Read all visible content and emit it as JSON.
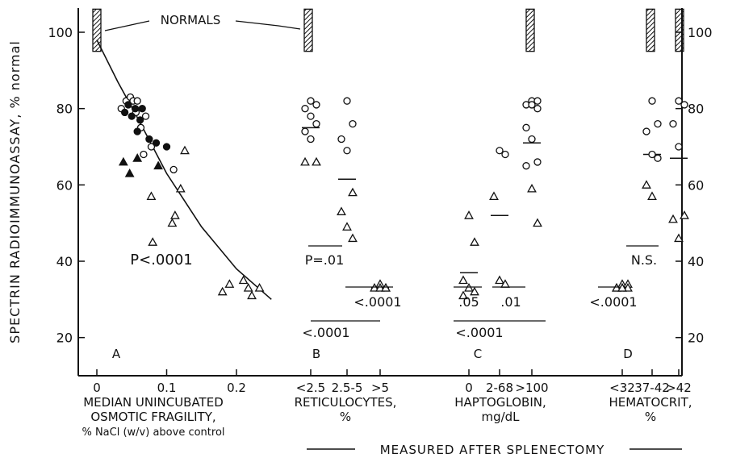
{
  "chart_data": {
    "type": "scatter",
    "ylabel": "SPECTRIN RADIOIMMUNOASSAY, % normal",
    "ylim": [
      10,
      105
    ],
    "yticks": [
      20,
      40,
      60,
      80,
      100
    ],
    "right_axis_labels": true,
    "footer": "MEASURED AFTER SPLENECTOMY",
    "markers": {
      "open_circle": "○",
      "filled_circle": "●",
      "open_triangle": "△",
      "filled_triangle": "▲"
    },
    "panels": [
      {
        "id": "A",
        "type": "scatter",
        "xlabel_lines": [
          "MEDIAN UNINCUBATED",
          "OSMOTIC FRAGILITY,",
          "% NaCl (w/v) above control"
        ],
        "xticks": [
          "0",
          "0.1",
          "0.2"
        ],
        "xlim": [
          -0.02,
          0.27
        ],
        "annotations": [
          "NORMALS",
          "P<.0001"
        ],
        "normals_range": [
          95,
          105
        ],
        "fit_curve": [
          [
            0.0,
            98
          ],
          [
            0.03,
            87
          ],
          [
            0.06,
            77
          ],
          [
            0.1,
            63
          ],
          [
            0.15,
            49
          ],
          [
            0.2,
            38
          ],
          [
            0.25,
            30
          ]
        ],
        "series": [
          {
            "marker": "open_circle",
            "points": [
              [
                0.035,
                80
              ],
              [
                0.042,
                82
              ],
              [
                0.048,
                83
              ],
              [
                0.052,
                82
              ],
              [
                0.056,
                79
              ],
              [
                0.058,
                82
              ],
              [
                0.063,
                75
              ],
              [
                0.067,
                68
              ],
              [
                0.07,
                78
              ],
              [
                0.078,
                70
              ],
              [
                0.11,
                64
              ]
            ]
          },
          {
            "marker": "filled_circle",
            "points": [
              [
                0.04,
                79
              ],
              [
                0.045,
                81
              ],
              [
                0.05,
                78
              ],
              [
                0.055,
                80
              ],
              [
                0.058,
                74
              ],
              [
                0.062,
                77
              ],
              [
                0.065,
                80
              ],
              [
                0.075,
                72
              ],
              [
                0.085,
                71
              ],
              [
                0.1,
                70
              ]
            ]
          },
          {
            "marker": "filled_triangle",
            "points": [
              [
                0.038,
                66
              ],
              [
                0.047,
                63
              ],
              [
                0.058,
                67
              ],
              [
                0.088,
                65
              ]
            ]
          },
          {
            "marker": "open_triangle",
            "points": [
              [
                0.078,
                57
              ],
              [
                0.08,
                45
              ],
              [
                0.108,
                50
              ],
              [
                0.112,
                52
              ],
              [
                0.12,
                59
              ],
              [
                0.126,
                69
              ],
              [
                0.18,
                32
              ],
              [
                0.19,
                34
              ],
              [
                0.21,
                35
              ],
              [
                0.217,
                33
              ],
              [
                0.222,
                31
              ],
              [
                0.233,
                33
              ]
            ]
          }
        ]
      },
      {
        "id": "B",
        "type": "scatter",
        "xlabel_lines": [
          "RETICULOCYTES,",
          "%"
        ],
        "categories": [
          "<2.5",
          "2.5-5",
          ">5"
        ],
        "normals_range": [
          95,
          105
        ],
        "annotations": [
          "P=.01",
          "<.0001",
          "<.0001"
        ],
        "medians": [
          75,
          61.5,
          33
        ],
        "series": [
          {
            "marker": "open_circle",
            "points": [
              [
                "<2.5",
                82
              ],
              [
                "<2.5",
                81
              ],
              [
                "<2.5",
                80
              ],
              [
                "<2.5",
                78
              ],
              [
                "<2.5",
                76
              ],
              [
                "<2.5",
                74
              ],
              [
                "<2.5",
                72
              ],
              [
                "2.5-5",
                82
              ],
              [
                "2.5-5",
                76
              ],
              [
                "2.5-5",
                72
              ],
              [
                "2.5-5",
                69
              ]
            ]
          },
          {
            "marker": "open_triangle",
            "points": [
              [
                "<2.5",
                66
              ],
              [
                "<2.5",
                66
              ],
              [
                "2.5-5",
                58
              ],
              [
                "2.5-5",
                53
              ],
              [
                "2.5-5",
                49
              ],
              [
                "2.5-5",
                46
              ],
              [
                ">5",
                34
              ],
              [
                ">5",
                33
              ],
              [
                ">5",
                33
              ],
              [
                ">5",
                33
              ],
              [
                ">5",
                33
              ]
            ]
          }
        ]
      },
      {
        "id": "C",
        "type": "scatter",
        "xlabel_lines": [
          "HAPTOGLOBIN,",
          "mg/dL"
        ],
        "categories": [
          "0",
          "2-68",
          ">100"
        ],
        "normals_range": [
          95,
          105
        ],
        "annotations": [
          ".05",
          ".01",
          "<.0001"
        ],
        "medians": [
          37,
          52,
          71
        ],
        "series": [
          {
            "marker": "open_circle",
            "points": [
              [
                "2-68",
                69
              ],
              [
                "2-68",
                68
              ],
              [
                ">100",
                82
              ],
              [
                ">100",
                82
              ],
              [
                ">100",
                81
              ],
              [
                ">100",
                81
              ],
              [
                ">100",
                80
              ],
              [
                ">100",
                75
              ],
              [
                ">100",
                72
              ],
              [
                ">100",
                66
              ],
              [
                ">100",
                65
              ]
            ]
          },
          {
            "marker": "open_triangle",
            "points": [
              [
                "0",
                52
              ],
              [
                "0",
                45
              ],
              [
                "0",
                35
              ],
              [
                "0",
                33
              ],
              [
                "0",
                32
              ],
              [
                "0",
                31
              ],
              [
                "2-68",
                57
              ],
              [
                "2-68",
                35
              ],
              [
                "2-68",
                34
              ],
              [
                ">100",
                59
              ],
              [
                ">100",
                50
              ]
            ]
          }
        ]
      },
      {
        "id": "D",
        "type": "scatter",
        "xlabel_lines": [
          "HEMATOCRIT,",
          "%"
        ],
        "categories": [
          "<32",
          "37-42",
          ">42"
        ],
        "normals_range": [
          95,
          105
        ],
        "annotations": [
          "N.S.",
          "<.0001"
        ],
        "medians": [
          32.5,
          68,
          67
        ],
        "series": [
          {
            "marker": "open_circle",
            "points": [
              [
                "37-42",
                82
              ],
              [
                "37-42",
                76
              ],
              [
                "37-42",
                74
              ],
              [
                "37-42",
                68
              ],
              [
                "37-42",
                67
              ],
              [
                ">42",
                82
              ],
              [
                ">42",
                81
              ],
              [
                ">42",
                76
              ],
              [
                ">42",
                70
              ]
            ]
          },
          {
            "marker": "open_triangle",
            "points": [
              [
                "<32",
                34
              ],
              [
                "<32",
                34
              ],
              [
                "<32",
                33
              ],
              [
                "<32",
                33
              ],
              [
                "<32",
                33
              ],
              [
                "<32",
                33
              ],
              [
                "<32",
                33
              ],
              [
                "37-42",
                60
              ],
              [
                "37-42",
                57
              ],
              [
                ">42",
                52
              ],
              [
                ">42",
                51
              ],
              [
                ">42",
                46
              ]
            ]
          }
        ]
      }
    ]
  }
}
